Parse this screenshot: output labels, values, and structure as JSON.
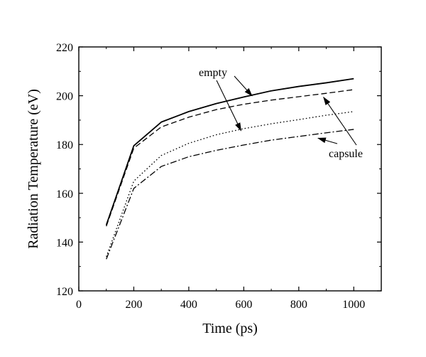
{
  "chart_data": {
    "type": "line",
    "xlabel": "Time (ps)",
    "ylabel": "Radiation Temperature (eV)",
    "xlim": [
      0,
      1100
    ],
    "ylim": [
      120,
      220
    ],
    "xticks": [
      0,
      200,
      400,
      600,
      800,
      1000
    ],
    "yticks": [
      120,
      140,
      160,
      180,
      200,
      220
    ],
    "x": [
      100,
      200,
      300,
      400,
      500,
      600,
      700,
      800,
      900,
      1000
    ],
    "series": [
      {
        "style": "solid",
        "values": [
          147,
          179.5,
          189.2,
          193.5,
          196.8,
          199.5,
          202,
          203.8,
          205.3,
          207
        ]
      },
      {
        "style": "dashed",
        "values": [
          146.5,
          178.5,
          187.2,
          191.2,
          194.3,
          196.5,
          198.2,
          199.6,
          201,
          202.5
        ]
      },
      {
        "style": "dotted",
        "values": [
          134,
          165,
          175.5,
          180.5,
          184,
          186.5,
          188.5,
          190.2,
          192,
          193.5
        ]
      },
      {
        "style": "dash-dot",
        "values": [
          133,
          162,
          171,
          175,
          177.6,
          179.8,
          181.8,
          183.3,
          184.8,
          186.2
        ]
      }
    ],
    "annotations": [
      {
        "text": "empty",
        "target_series": [
          0,
          2
        ]
      },
      {
        "text": "capsule",
        "target_series": [
          1,
          3
        ]
      }
    ],
    "grid": false,
    "legend": "none"
  }
}
